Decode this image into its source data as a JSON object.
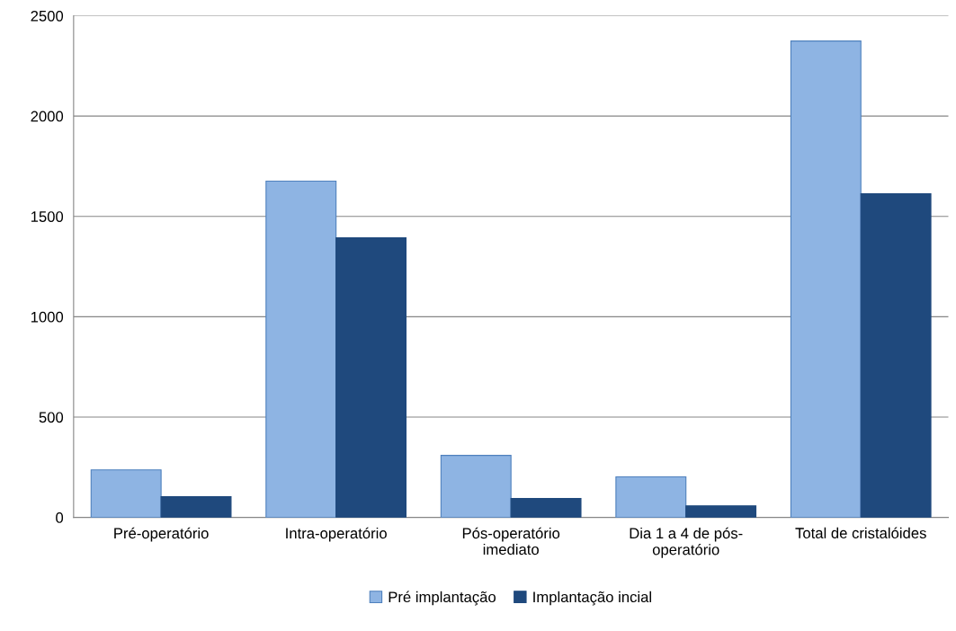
{
  "chart_data": {
    "type": "bar",
    "categories": [
      "Pré-operatório",
      "Intra-operatório",
      "Pós-operatório\nimediato",
      "Dia 1 a 4 de pós-\noperatório",
      "Total de cristalóides"
    ],
    "series": [
      {
        "name": "Pré implantação",
        "color": "#8eb4e3",
        "values": [
          237,
          1676,
          309,
          202,
          2374
        ]
      },
      {
        "name": "Implantação incial",
        "color": "#1f497d",
        "values": [
          103,
          1393,
          94,
          58,
          1613
        ]
      }
    ],
    "ylim": [
      0,
      2500
    ],
    "yticks": [
      0,
      500,
      1000,
      1500,
      2000,
      2500
    ],
    "grid": "y",
    "legend": "bottom"
  }
}
